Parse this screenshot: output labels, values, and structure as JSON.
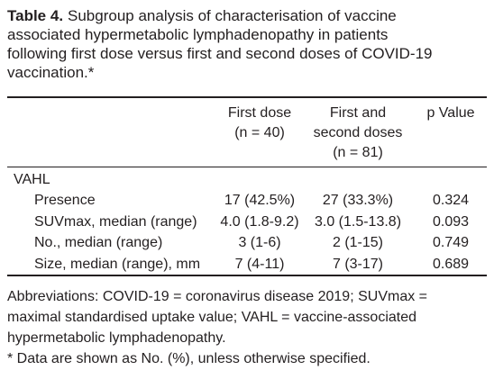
{
  "caption": {
    "label": "Table 4.",
    "lines": [
      "Subgroup analysis of characterisation of vaccine",
      "associated hypermetabolic lymphadenopathy in patients",
      "following first dose versus first and second doses of COVID-19",
      "vaccination.*"
    ]
  },
  "table": {
    "header": [
      [
        "First dose",
        "(n = 40)"
      ],
      [
        "First and",
        "second doses",
        "(n = 81)"
      ],
      [
        "p Value"
      ]
    ],
    "group": "VAHL",
    "rows": [
      [
        "Presence",
        "17 (42.5%)",
        "27 (33.3%)",
        "0.324"
      ],
      [
        "SUVmax, median (range)",
        "4.0 (1.8-9.2)",
        "3.0 (1.5-13.8)",
        "0.093"
      ],
      [
        "No., median (range)",
        "3 (1-6)",
        "2 (1-15)",
        "0.749"
      ],
      [
        "Size, median (range), mm",
        "7 (4-11)",
        "7 (3-17)",
        "0.689"
      ]
    ]
  },
  "footnotes": [
    "Abbreviations: COVID-19 = coronavirus disease 2019; SUVmax =",
    "maximal standardised uptake value; VAHL = vaccine-associated",
    "hypermetabolic lymphadenopathy.",
    "* Data are shown as No. (%), unless otherwise specified."
  ]
}
